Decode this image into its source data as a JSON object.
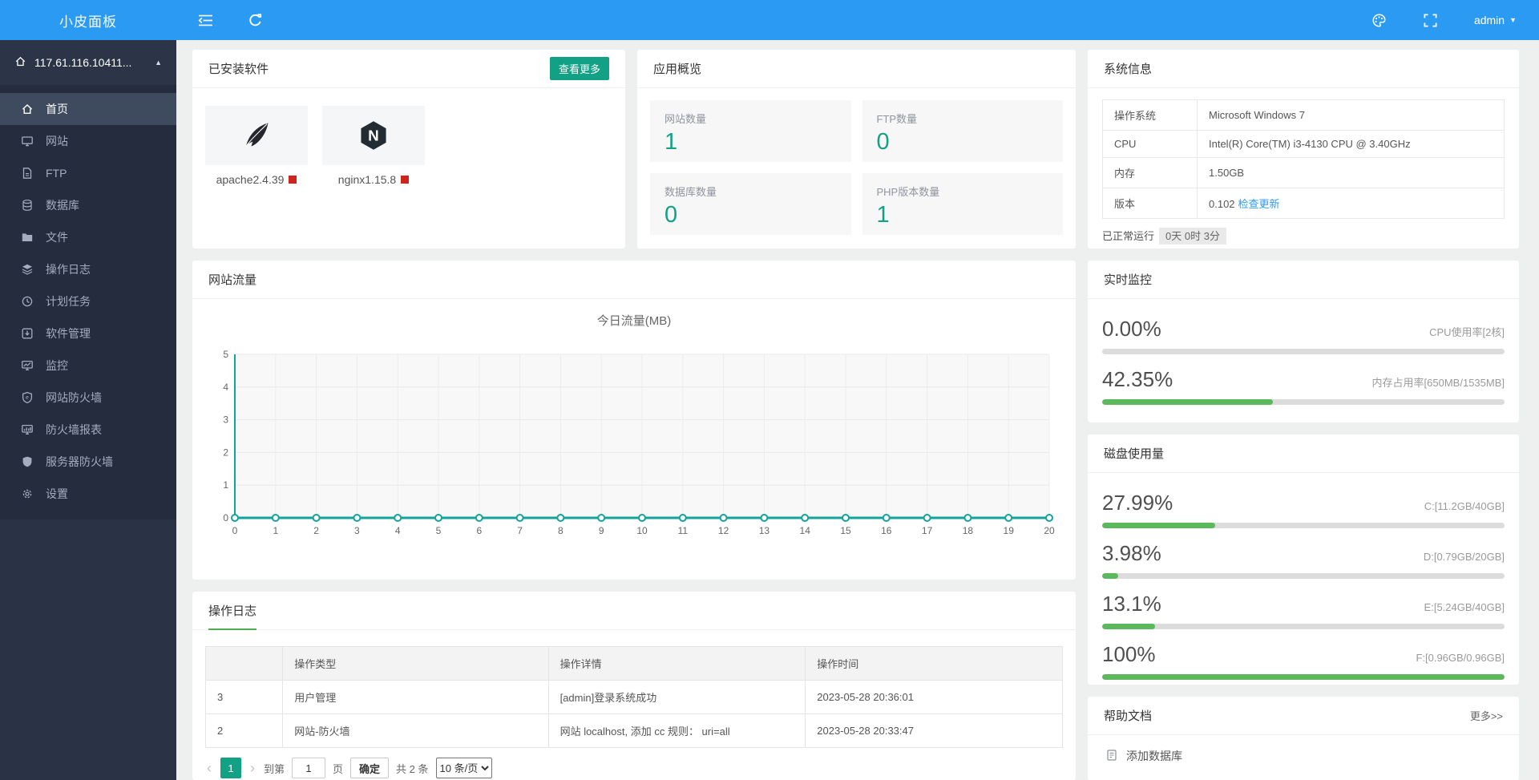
{
  "topbar": {
    "brand": "小皮面板",
    "user": "admin",
    "icons": [
      "collapse-menu",
      "refresh",
      "palette",
      "fullscreen",
      "caret-down"
    ]
  },
  "sidebar": {
    "server": "117.61.116.10411...",
    "server_icon": "home",
    "items": [
      {
        "label": "首页",
        "icon": "home",
        "active": true
      },
      {
        "label": "网站",
        "icon": "monitor",
        "active": false
      },
      {
        "label": "FTP",
        "icon": "file",
        "active": false
      },
      {
        "label": "数据库",
        "icon": "database",
        "active": false
      },
      {
        "label": "文件",
        "icon": "folder",
        "active": false
      },
      {
        "label": "操作日志",
        "icon": "layers",
        "active": false
      },
      {
        "label": "计划任务",
        "icon": "clock",
        "active": false
      },
      {
        "label": "软件管理",
        "icon": "package",
        "active": false
      },
      {
        "label": "监控",
        "icon": "monitor-chart",
        "active": false
      },
      {
        "label": "网站防火墙",
        "icon": "shield-web",
        "active": false
      },
      {
        "label": "防火墙报表",
        "icon": "monitor-report",
        "active": false
      },
      {
        "label": "服务器防火墙",
        "icon": "shield",
        "active": false
      },
      {
        "label": "设置",
        "icon": "gear",
        "active": false
      }
    ]
  },
  "installed": {
    "title": "已安装软件",
    "more_label": "查看更多",
    "items": [
      {
        "name": "apache2.4.39",
        "icon": "apache-feather",
        "badge_color": "#d0231c"
      },
      {
        "name": "nginx1.15.8",
        "icon": "nginx-hexagon",
        "badge_color": "#d0231c"
      }
    ]
  },
  "overview": {
    "title": "应用概览",
    "stats": [
      {
        "label": "网站数量",
        "value": "1"
      },
      {
        "label": "FTP数量",
        "value": "0"
      },
      {
        "label": "数据库数量",
        "value": "0"
      },
      {
        "label": "PHP版本数量",
        "value": "1"
      }
    ]
  },
  "traffic": {
    "title": "网站流量",
    "chart_data": {
      "type": "line",
      "title": "今日流量(MB)",
      "x": [
        0,
        1,
        2,
        3,
        4,
        5,
        6,
        7,
        8,
        9,
        10,
        11,
        12,
        13,
        14,
        15,
        16,
        17,
        18,
        19,
        20
      ],
      "values": [
        0,
        0,
        0,
        0,
        0,
        0,
        0,
        0,
        0,
        0,
        0,
        0,
        0,
        0,
        0,
        0,
        0,
        0,
        0,
        0,
        0
      ],
      "xlabel": "",
      "ylabel": "",
      "ylim": [
        0,
        5
      ],
      "yticks": [
        0,
        1,
        2,
        3,
        4,
        5
      ],
      "grid": true,
      "line_color": "#13a39b"
    }
  },
  "logs": {
    "title": "操作日志",
    "columns": [
      "",
      "操作类型",
      "操作详情",
      "操作时间"
    ],
    "rows": [
      [
        "3",
        "用户管理",
        "[admin]登录系统成功",
        "2023-05-28 20:36:01"
      ],
      [
        "2",
        "网站-防火墙",
        "网站 localhost, 添加 cc 规则： uri=all",
        "2023-05-28 20:33:47"
      ]
    ],
    "pagination": {
      "current_page": "1",
      "goto_label": "到第",
      "page_input": "1",
      "page_suffix": "页",
      "confirm_label": "确定",
      "total_label": "共 2 条",
      "page_size": "10 条/页"
    }
  },
  "system": {
    "title": "系统信息",
    "rows": [
      {
        "label": "操作系统",
        "value": "Microsoft Windows 7",
        "link": ""
      },
      {
        "label": "CPU",
        "value": "Intel(R) Core(TM) i3-4130 CPU @ 3.40GHz",
        "link": ""
      },
      {
        "label": "内存",
        "value": "1.50GB",
        "link": ""
      },
      {
        "label": "版本",
        "value": "0.102",
        "link": "检查更新"
      }
    ],
    "uptime_label": "已正常运行",
    "uptime": "0天 0时 3分"
  },
  "monitor": {
    "title": "实时监控",
    "meters": [
      {
        "percent": "0.00%",
        "value": 0,
        "label": "CPU使用率[2核]"
      },
      {
        "percent": "42.35%",
        "value": 42.35,
        "label": "内存占用率[650MB/1535MB]"
      }
    ]
  },
  "disks": {
    "title": "磁盘使用量",
    "meters": [
      {
        "percent": "27.99%",
        "value": 27.99,
        "label": "C:[11.2GB/40GB]"
      },
      {
        "percent": "3.98%",
        "value": 3.98,
        "label": "D:[0.79GB/20GB]"
      },
      {
        "percent": "13.1%",
        "value": 13.1,
        "label": "E:[5.24GB/40GB]"
      },
      {
        "percent": "100%",
        "value": 100,
        "label": "F:[0.96GB/0.96GB]"
      }
    ]
  },
  "help": {
    "title": "帮助文档",
    "more_label": "更多>>",
    "items": [
      {
        "label": "添加数据库",
        "icon": "document"
      }
    ]
  },
  "colors": {
    "topbar_blue": "#2b9af3",
    "sidebar_dark": "#2a3346",
    "accent_teal": "#13a185",
    "chart_teal": "#13a39b",
    "progress_green": "#5cb85c",
    "tab_green": "#4cae4c",
    "badge_red": "#d0231c",
    "link_blue": "#2b9af3"
  }
}
